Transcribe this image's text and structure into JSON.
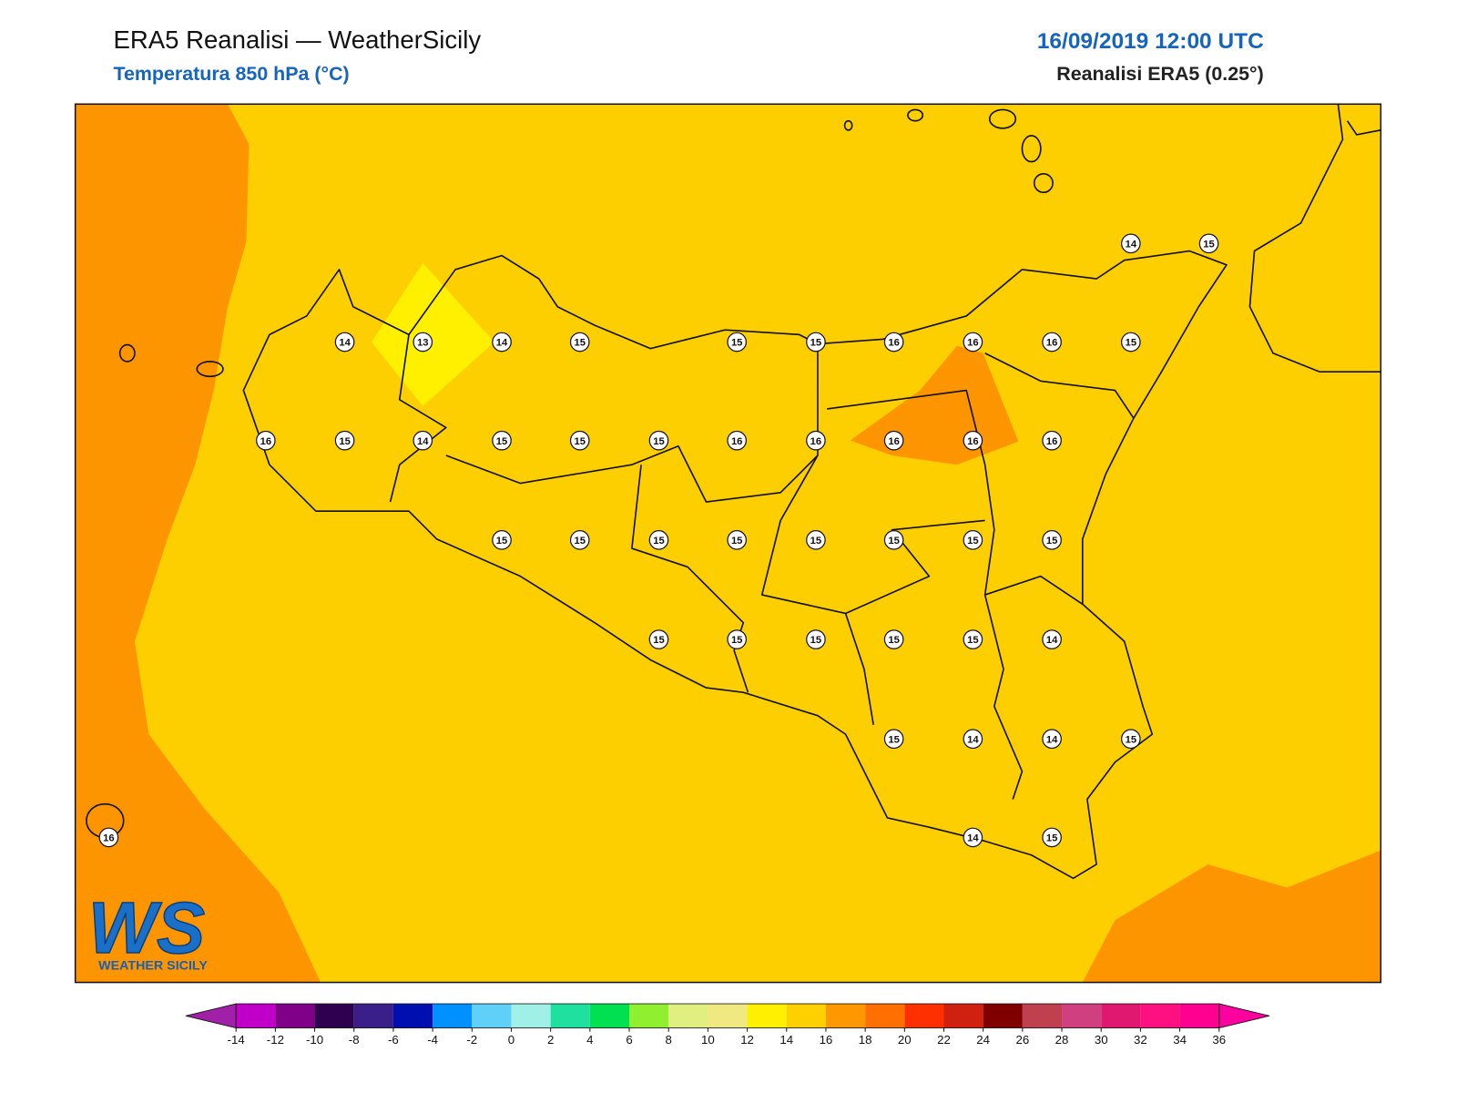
{
  "header": {
    "title": "ERA5 Reanalisi — WeatherSicily",
    "subtitle": "Temperatura 850 hPa (°C)",
    "date": "16/09/2019 12:00 UTC",
    "source": "Reanalisi ERA5 (0.25°)"
  },
  "map": {
    "labels": [
      14,
      15,
      14,
      13,
      14,
      15,
      15,
      15,
      16,
      16,
      16,
      15,
      16,
      15,
      14,
      15,
      15,
      15,
      16,
      16,
      16,
      16,
      16,
      15,
      15,
      15,
      15,
      15,
      15,
      15,
      15,
      15,
      15,
      15,
      15,
      15,
      14,
      15,
      14,
      14,
      15,
      16,
      14,
      15
    ]
  },
  "logo": {
    "mark": "WS",
    "text": "WEATHER SICILY"
  },
  "colorbar": {
    "ticks": [
      -14,
      -12,
      -10,
      -8,
      -6,
      -4,
      -2,
      0,
      2,
      4,
      6,
      8,
      10,
      12,
      14,
      16,
      18,
      20,
      22,
      24,
      26,
      28,
      30,
      32,
      34,
      36
    ],
    "colors": [
      "#a020a8",
      "#c000c8",
      "#800088",
      "#300050",
      "#3a1e8a",
      "#0010b0",
      "#0090ff",
      "#60d0f8",
      "#a0f0e8",
      "#20e0a0",
      "#00e050",
      "#90f030",
      "#e0f080",
      "#f0e880",
      "#fff000",
      "#ffd000",
      "#ff9800",
      "#ff7000",
      "#ff3000",
      "#d02010",
      "#800000",
      "#c04050",
      "#d04080",
      "#e01870",
      "#ff1080",
      "#ff0090",
      "#ff00a0"
    ]
  }
}
